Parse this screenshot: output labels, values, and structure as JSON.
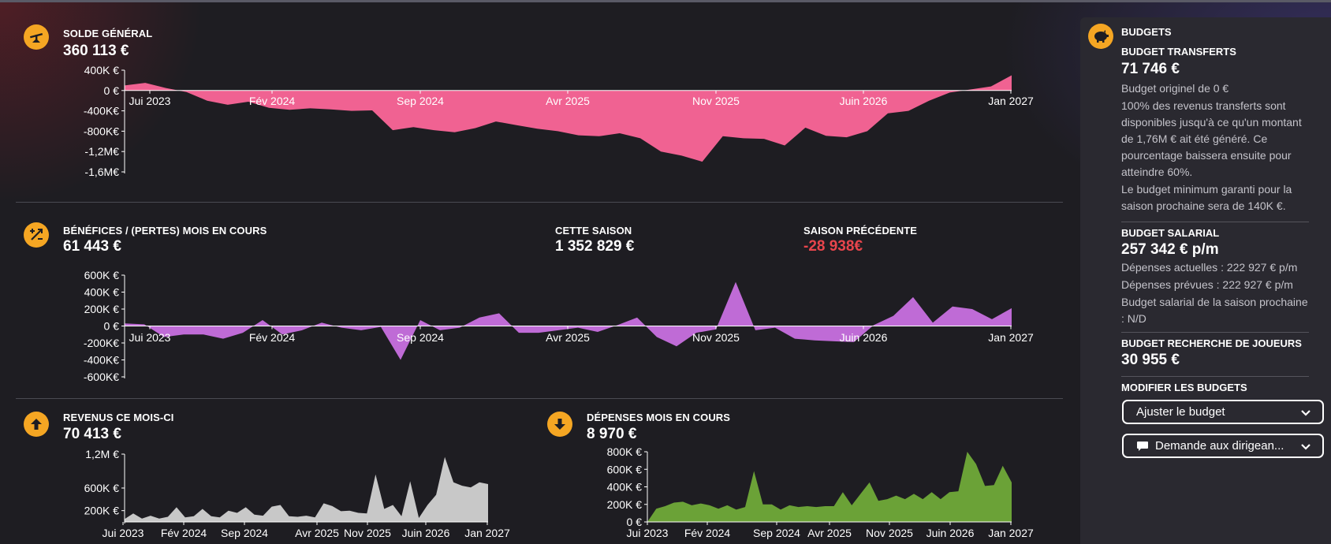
{
  "solde": {
    "title": "SOLDE GÉNÉRAL",
    "value": "360 113 €"
  },
  "benefices": {
    "title": "BÉNÉFICES / (PERTES) MOIS EN COURS",
    "value": "61 443 €",
    "season_title": "CETTE SAISON",
    "season_value": "1 352 829 €",
    "prev_title": "SAISON PRÉCÉDENTE",
    "prev_value": "-28 938€"
  },
  "revenus": {
    "title": "REVENUS CE MOIS-CI",
    "value": "70 413 €"
  },
  "depenses": {
    "title": "DÉPENSES MOIS EN COURS",
    "value": "8 970 €"
  },
  "budgets": {
    "header": "BUDGETS",
    "transfer_title": "BUDGET TRANSFERTS",
    "transfer_value": "71 746 €",
    "transfer_original": "Budget originel de 0 €",
    "transfer_desc": "100% des revenus transferts sont disponibles jusqu'à ce qu'un montant de 1,76M € ait été généré. Ce pourcentage baissera ensuite pour atteindre 60%.",
    "transfer_min": "Le budget minimum garanti pour la saison prochaine sera de 140K €.",
    "salary_title": "BUDGET SALARIAL",
    "salary_value": "257 342 € p/m",
    "salary_current": "Dépenses actuelles : 222 927 € p/m",
    "salary_planned": "Dépenses prévues : 222 927 € p/m",
    "salary_next": "Budget salarial de la saison prochaine : N/D",
    "scouting_title": "BUDGET RECHERCHE DE JOUEURS",
    "scouting_value": "30 955 €",
    "modify_title": "MODIFIER LES BUDGETS",
    "adjust_button": "Ajuster le budget",
    "request_button": "Demande aux dirigean..."
  },
  "icons": {
    "balance": "balance-scale-icon",
    "profit": "plus-minus-arrows-icon",
    "income": "arrow-up-icon",
    "expenses": "arrow-down-icon",
    "budgets": "piggy-bank-icon",
    "dropdown": "chevron-down-icon",
    "speech": "speech-bubble-icon"
  },
  "chart_data": [
    {
      "name_ref": "solde",
      "type": "area",
      "color": "#f06292",
      "x_tick_labels": [
        "Jui 2023",
        "Fév 2024",
        "Sep 2024",
        "Avr 2025",
        "Nov 2025",
        "Juin 2026",
        "Jan 2027"
      ],
      "y_tick_labels": [
        "400K €",
        "0 €",
        "-400K€",
        "-800K€",
        "-1,2M€",
        "-1,6M€"
      ],
      "y_ticks": [
        400000,
        0,
        -400000,
        -800000,
        -1200000,
        -1600000
      ],
      "ylim": [
        -1600000,
        400000
      ],
      "values": [
        100000,
        150000,
        50000,
        -30000,
        -200000,
        -280000,
        -220000,
        -340000,
        -380000,
        -350000,
        -370000,
        -400000,
        -390000,
        -780000,
        -720000,
        -780000,
        -820000,
        -740000,
        -610000,
        -680000,
        -750000,
        -800000,
        -880000,
        -900000,
        -840000,
        -940000,
        -1200000,
        -1280000,
        -1400000,
        -900000,
        -940000,
        -950000,
        -1080000,
        -730000,
        -890000,
        -920000,
        -800000,
        -450000,
        -400000,
        -200000,
        -40000,
        20000,
        80000,
        300000
      ]
    },
    {
      "name_ref": "benefices",
      "type": "area",
      "color": "#bf6bd6",
      "x_tick_labels": [
        "Jui 2023",
        "Fév 2024",
        "Sep 2024",
        "Avr 2025",
        "Nov 2025",
        "Juin 2026",
        "Jan 2027"
      ],
      "y_tick_labels": [
        "600K €",
        "400K €",
        "200K €",
        "0 €",
        "-200K€",
        "-400K€",
        "-600K€"
      ],
      "y_ticks": [
        600000,
        400000,
        200000,
        0,
        -200000,
        -400000,
        -600000
      ],
      "ylim": [
        -600000,
        600000
      ],
      "values": [
        30000,
        20000,
        -130000,
        -100000,
        -100000,
        -150000,
        -80000,
        70000,
        -100000,
        -50000,
        40000,
        -20000,
        -50000,
        -10000,
        -400000,
        70000,
        -50000,
        -20000,
        100000,
        150000,
        -80000,
        -80000,
        -50000,
        -20000,
        -70000,
        10000,
        100000,
        -130000,
        -240000,
        -80000,
        -40000,
        520000,
        -50000,
        -20000,
        -150000,
        -170000,
        -180000,
        -190000,
        10000,
        120000,
        340000,
        40000,
        230000,
        200000,
        80000,
        210000
      ]
    },
    {
      "name_ref": "revenus",
      "type": "area",
      "color": "#c8c8c8",
      "x_tick_labels": [
        "Jui 2023",
        "Fév 2024",
        "Sep 2024",
        "Avr 2025",
        "Nov 2025",
        "Juin 2026",
        "Jan 2027"
      ],
      "y_tick_labels": [
        "1,2M €",
        "600K €",
        "200K €"
      ],
      "y_ticks": [
        1200000,
        600000,
        200000
      ],
      "ylim": [
        0,
        1200000
      ],
      "values": [
        50000,
        150000,
        60000,
        110000,
        60000,
        90000,
        260000,
        80000,
        100000,
        230000,
        100000,
        80000,
        200000,
        160000,
        260000,
        130000,
        110000,
        270000,
        300000,
        100000,
        90000,
        110000,
        80000,
        330000,
        280000,
        190000,
        200000,
        160000,
        150000,
        840000,
        230000,
        300000,
        100000,
        720000,
        70000,
        300000,
        480000,
        1150000,
        700000,
        640000,
        610000,
        700000,
        670000
      ]
    },
    {
      "name_ref": "depenses",
      "type": "area",
      "color": "#6ba237",
      "x_tick_labels": [
        "Jui 2023",
        "Fév 2024",
        "Sep 2024",
        "Avr 2025",
        "Nov 2025",
        "Juin 2026",
        "Jan 2027"
      ],
      "y_tick_labels": [
        "800K €",
        "600K €",
        "400K €",
        "200K €",
        "0 €"
      ],
      "y_ticks": [
        800000,
        600000,
        400000,
        200000,
        0
      ],
      "ylim": [
        0,
        800000
      ],
      "values": [
        0,
        150000,
        180000,
        220000,
        230000,
        190000,
        210000,
        190000,
        150000,
        190000,
        140000,
        170000,
        580000,
        200000,
        200000,
        140000,
        190000,
        170000,
        180000,
        170000,
        180000,
        180000,
        340000,
        190000,
        320000,
        450000,
        240000,
        260000,
        300000,
        260000,
        320000,
        260000,
        340000,
        260000,
        340000,
        350000,
        800000,
        660000,
        410000,
        420000,
        640000,
        450000
      ]
    }
  ]
}
